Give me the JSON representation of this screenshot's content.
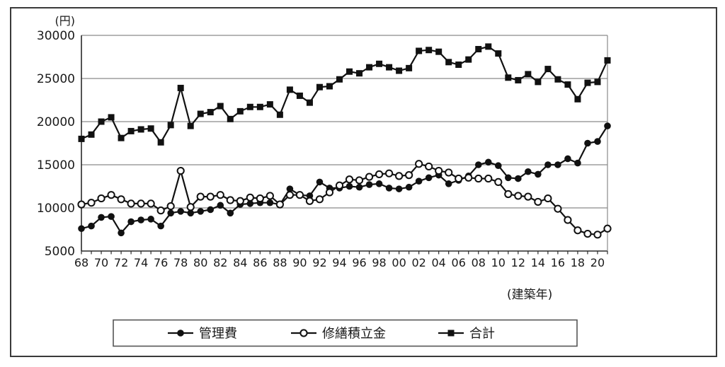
{
  "chart_data": {
    "type": "line",
    "title": "",
    "ylabel": "(円)",
    "xlabel": "(建築年)",
    "ylim": [
      5000,
      30000
    ],
    "y_ticks": [
      30000,
      25000,
      20000,
      15000,
      10000,
      5000
    ],
    "grid": true,
    "legend_position": "bottom",
    "x": [
      1968,
      1969,
      1970,
      1971,
      1972,
      1973,
      1974,
      1975,
      1976,
      1977,
      1978,
      1979,
      1980,
      1981,
      1982,
      1983,
      1984,
      1985,
      1986,
      1987,
      1988,
      1989,
      1990,
      1991,
      1992,
      1993,
      1994,
      1995,
      1996,
      1997,
      1998,
      1999,
      2000,
      2001,
      2002,
      2003,
      2004,
      2005,
      2006,
      2007,
      2008,
      2009,
      2010,
      2011,
      2012,
      2013,
      2014,
      2015,
      2016,
      2017,
      2018,
      2019,
      2020,
      2021
    ],
    "x_tick_labels": [
      "68",
      "70",
      "72",
      "74",
      "76",
      "78",
      "80",
      "82",
      "84",
      "86",
      "88",
      "90",
      "92",
      "94",
      "96",
      "98",
      "00",
      "02",
      "04",
      "06",
      "08",
      "10",
      "12",
      "14",
      "16",
      "18",
      "20"
    ],
    "series": [
      {
        "id": "kanrihi",
        "name": "管理費",
        "marker": "filled-circle",
        "values": [
          7600,
          7900,
          8900,
          9000,
          7100,
          8400,
          8600,
          8700,
          7900,
          9400,
          9600,
          9400,
          9600,
          9800,
          10300,
          9400,
          10400,
          10500,
          10600,
          10600,
          10400,
          12200,
          11500,
          11400,
          13000,
          12300,
          12300,
          12500,
          12400,
          12700,
          12800,
          12300,
          12200,
          12400,
          13100,
          13500,
          13800,
          12800,
          13200,
          13700,
          15000,
          15300,
          14900,
          13500,
          13400,
          14200,
          13900,
          15000,
          15000,
          15700,
          15200,
          17500,
          17700,
          19500
        ]
      },
      {
        "id": "shuzen-tsumitatekin",
        "name": "修繕積立金",
        "marker": "open-circle",
        "values": [
          10400,
          10600,
          11100,
          11500,
          11000,
          10500,
          10500,
          10500,
          9700,
          10200,
          14300,
          10100,
          11300,
          11300,
          11500,
          10900,
          10800,
          11200,
          11100,
          11400,
          10400,
          11500,
          11500,
          10800,
          11000,
          11800,
          12600,
          13300,
          13200,
          13600,
          13900,
          14000,
          13700,
          13800,
          15100,
          14800,
          14300,
          14100,
          13400,
          13500,
          13400,
          13400,
          13000,
          11600,
          11400,
          11300,
          10700,
          11100,
          9900,
          8600,
          7400,
          7000,
          6900,
          7600
        ]
      },
      {
        "id": "goukei",
        "name": "合計",
        "marker": "filled-square",
        "values": [
          18000,
          18500,
          20000,
          20500,
          18100,
          18900,
          19100,
          19200,
          17600,
          19600,
          23900,
          19500,
          20900,
          21100,
          21800,
          20300,
          21200,
          21700,
          21700,
          22000,
          20800,
          23700,
          23000,
          22200,
          24000,
          24100,
          24900,
          25800,
          25600,
          26300,
          26700,
          26300,
          25900,
          26200,
          28200,
          28300,
          28100,
          26900,
          26600,
          27200,
          28400,
          28700,
          27900,
          25100,
          24800,
          25500,
          24600,
          26100,
          24900,
          24300,
          22600,
          24500,
          24600,
          27100
        ]
      }
    ]
  },
  "colors": {
    "line": "#111111",
    "grid": "#8a8a8a",
    "axis": "#2a2a2a",
    "border": "#3a3a3a",
    "legend_border": "#555555",
    "background": "#ffffff"
  }
}
